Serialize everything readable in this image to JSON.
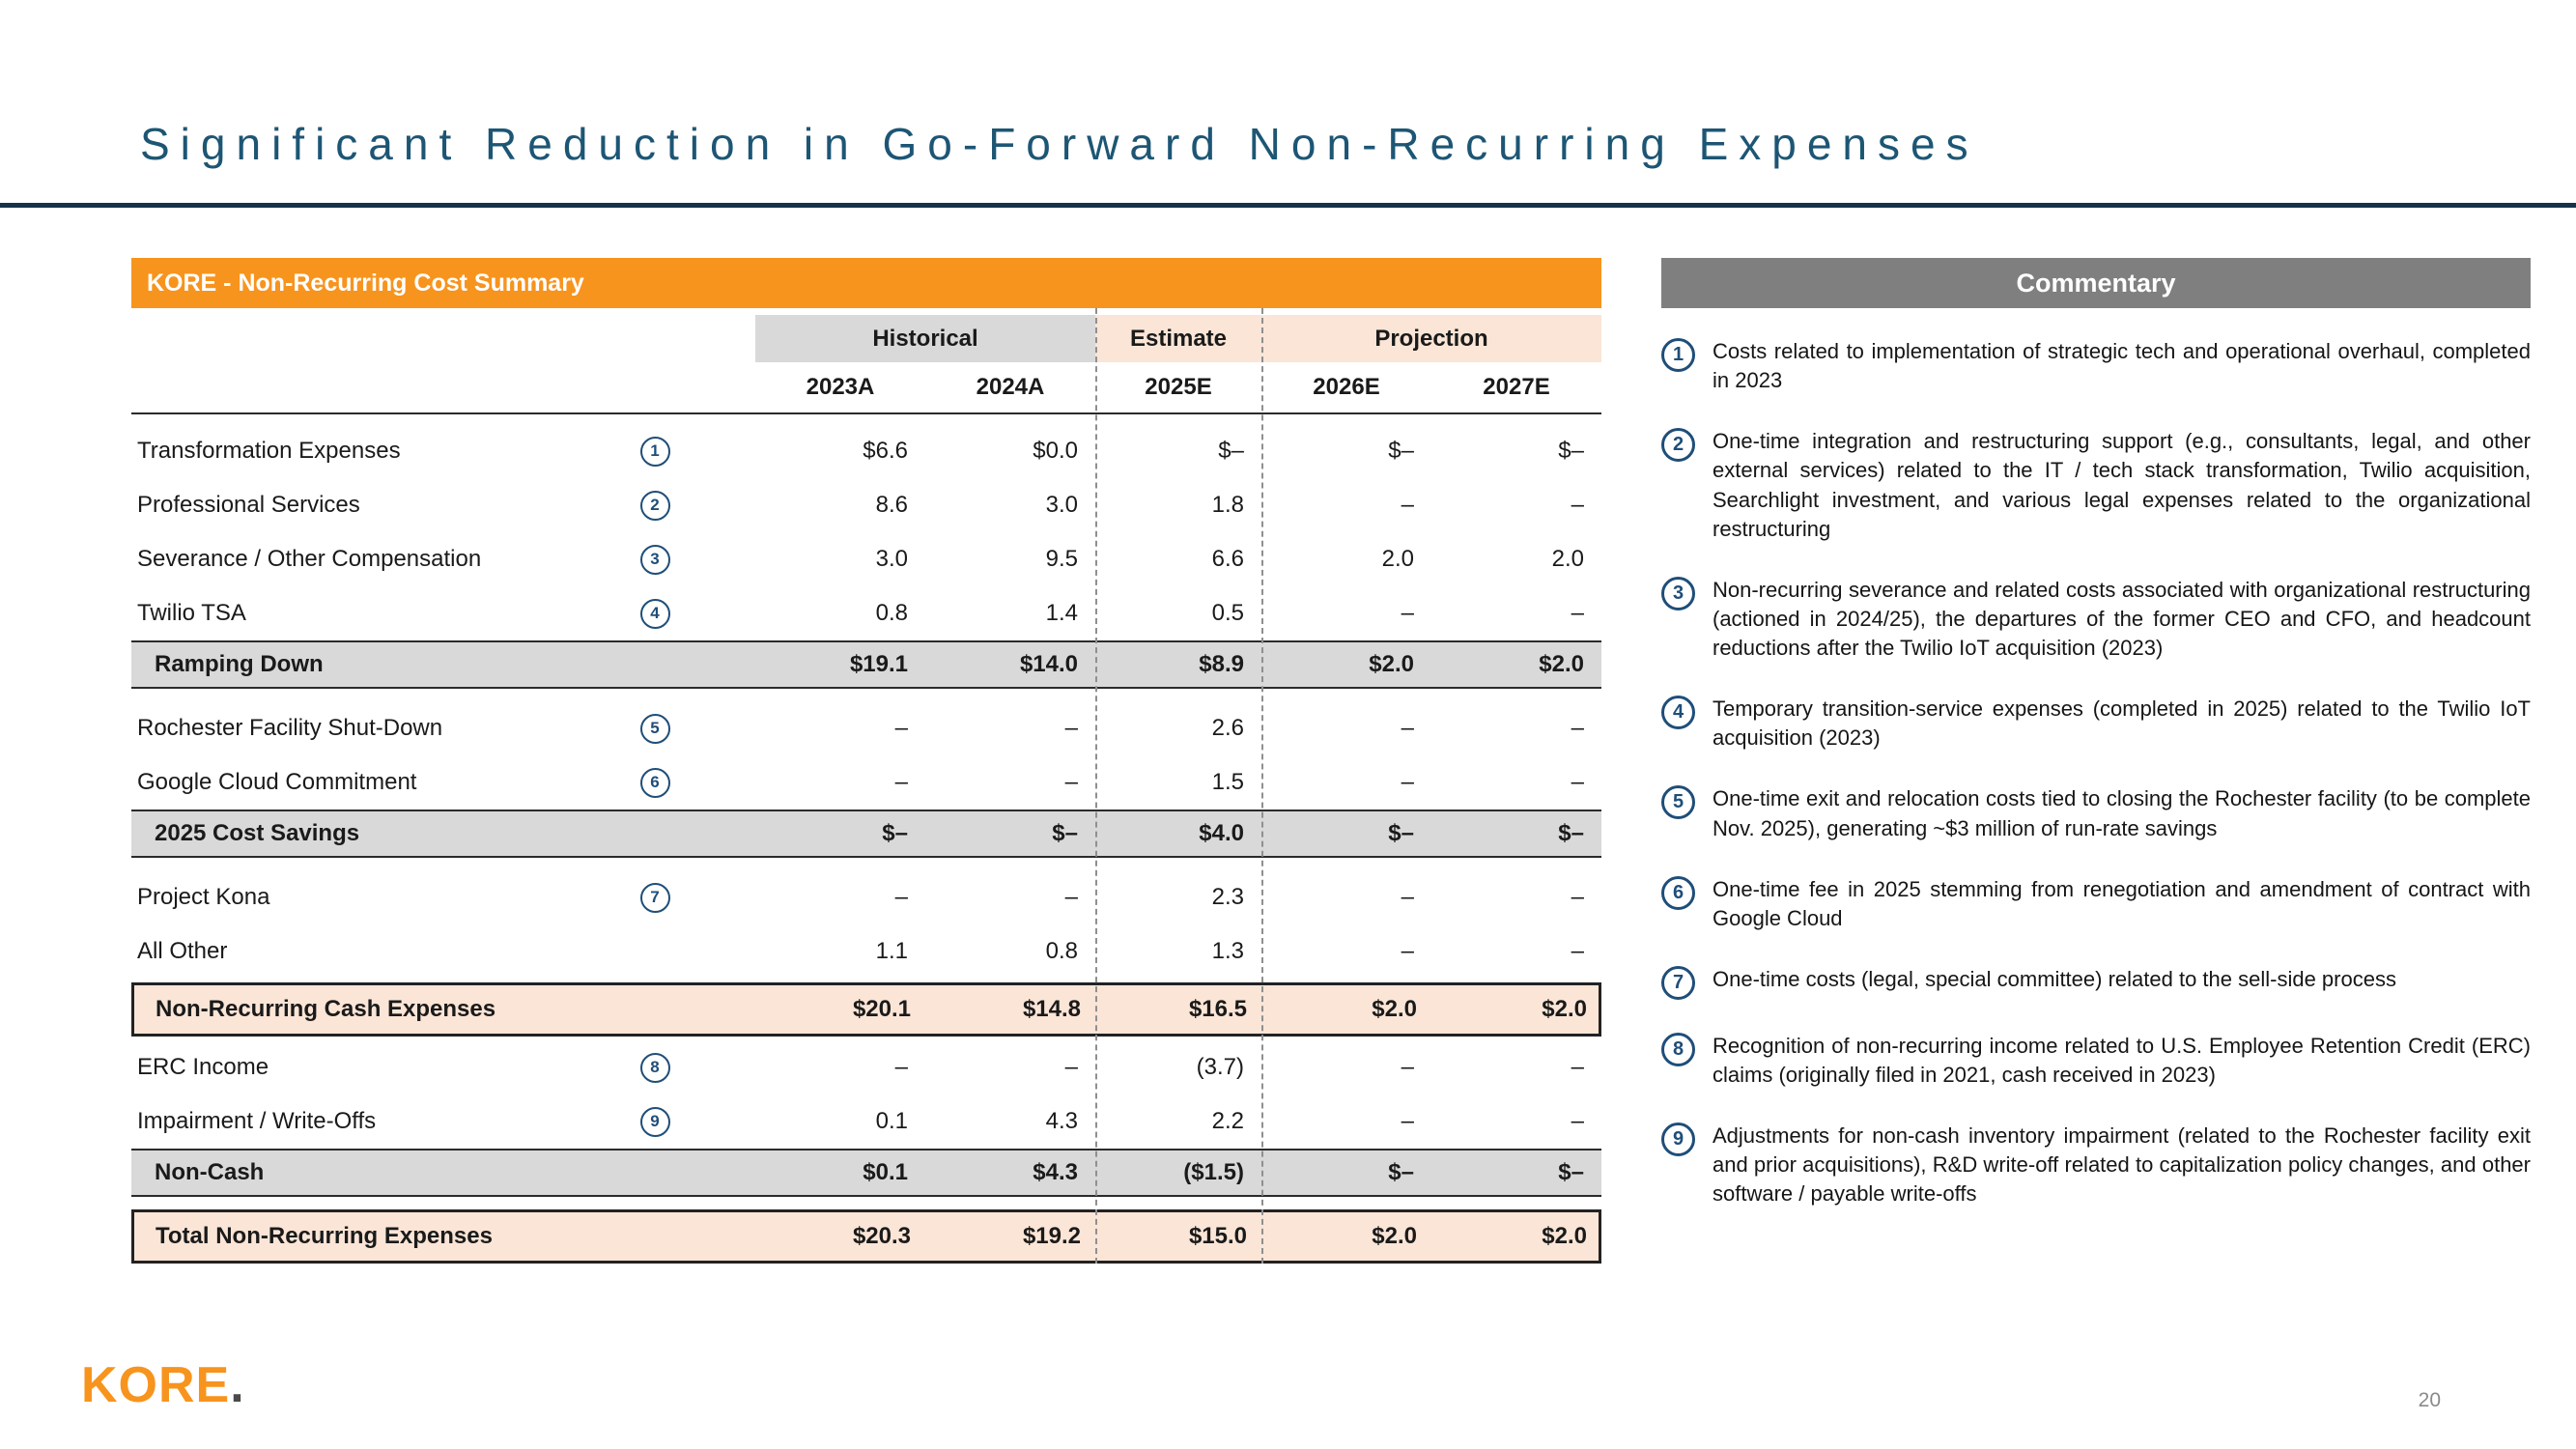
{
  "page": {
    "title": "Significant Reduction in Go-Forward Non-Recurring Expenses",
    "page_number": "20",
    "logo_text": "KORE",
    "logo_dot": "."
  },
  "colors": {
    "accent_orange": "#F7941E",
    "navy_circle": "#1F4E79",
    "title_teal": "#1D5674",
    "subtotal_gray": "#D9D9D9",
    "highlight_peach": "#FBE5D6",
    "commentary_gray": "#7F7F7F"
  },
  "table": {
    "header": "KORE - Non-Recurring Cost Summary",
    "column_groups": [
      {
        "label": "Historical"
      },
      {
        "label": "Estimate"
      },
      {
        "label": "Projection"
      }
    ],
    "years": [
      "2023A",
      "2024A",
      "2025E",
      "2026E",
      "2027E"
    ],
    "rows": [
      {
        "type": "item",
        "label": "Transformation Expenses",
        "note": "1",
        "values": [
          "$6.6",
          "$0.0",
          "$–",
          "$–",
          "$–"
        ]
      },
      {
        "type": "item",
        "label": "Professional Services",
        "note": "2",
        "values": [
          "8.6",
          "3.0",
          "1.8",
          "–",
          "–"
        ]
      },
      {
        "type": "item",
        "label": "Severance / Other Compensation",
        "note": "3",
        "values": [
          "3.0",
          "9.5",
          "6.6",
          "2.0",
          "2.0"
        ]
      },
      {
        "type": "item",
        "label": "Twilio TSA",
        "note": "4",
        "values": [
          "0.8",
          "1.4",
          "0.5",
          "–",
          "–"
        ]
      },
      {
        "type": "subtotal",
        "label": "Ramping Down",
        "values": [
          "$19.1",
          "$14.0",
          "$8.9",
          "$2.0",
          "$2.0"
        ]
      },
      {
        "type": "item",
        "label": "Rochester Facility Shut-Down",
        "note": "5",
        "values": [
          "–",
          "–",
          "2.6",
          "–",
          "–"
        ]
      },
      {
        "type": "item",
        "label": "Google Cloud Commitment",
        "note": "6",
        "values": [
          "–",
          "–",
          "1.5",
          "–",
          "–"
        ]
      },
      {
        "type": "subtotal",
        "label": "2025 Cost Savings",
        "values": [
          "$–",
          "$–",
          "$4.0",
          "$–",
          "$–"
        ]
      },
      {
        "type": "item",
        "label": "Project Kona",
        "note": "7",
        "values": [
          "–",
          "–",
          "2.3",
          "–",
          "–"
        ]
      },
      {
        "type": "item",
        "label": "All Other",
        "values": [
          "1.1",
          "0.8",
          "1.3",
          "–",
          "–"
        ]
      },
      {
        "type": "highlight",
        "label": "Non-Recurring Cash Expenses",
        "values": [
          "$20.1",
          "$14.8",
          "$16.5",
          "$2.0",
          "$2.0"
        ]
      },
      {
        "type": "item",
        "label": "ERC Income",
        "note": "8",
        "values": [
          "–",
          "–",
          "(3.7)",
          "–",
          "–"
        ]
      },
      {
        "type": "item",
        "label": "Impairment / Write-Offs",
        "note": "9",
        "values": [
          "0.1",
          "4.3",
          "2.2",
          "–",
          "–"
        ]
      },
      {
        "type": "subtotal",
        "label": "Non-Cash",
        "values": [
          "$0.1",
          "$4.3",
          "($1.5)",
          "$–",
          "$–"
        ]
      },
      {
        "type": "highlight",
        "label": "Total Non-Recurring Expenses",
        "values": [
          "$20.3",
          "$19.2",
          "$15.0",
          "$2.0",
          "$2.0"
        ]
      }
    ]
  },
  "commentary": {
    "title": "Commentary",
    "items": [
      {
        "number": "1",
        "text": "Costs related to implementation of strategic tech and operational overhaul, completed in 2023"
      },
      {
        "number": "2",
        "text": "One-time integration and restructuring support (e.g., consultants, legal, and other external services) related to the IT / tech stack transformation, Twilio acquisition, Searchlight investment, and various legal expenses related to the organizational restructuring"
      },
      {
        "number": "3",
        "text": "Non-recurring severance and related costs associated with organizational restructuring (actioned in 2024/25), the departures of the former CEO and CFO, and headcount reductions after the Twilio IoT acquisition (2023)"
      },
      {
        "number": "4",
        "text": "Temporary transition-service expenses (completed in 2025) related to the Twilio IoT acquisition (2023)"
      },
      {
        "number": "5",
        "text": "One-time exit and relocation costs tied to closing the Rochester facility (to be complete Nov. 2025), generating ~$3 million of run-rate savings"
      },
      {
        "number": "6",
        "text": "One-time fee in 2025 stemming from renegotiation and amendment of contract with Google Cloud"
      },
      {
        "number": "7",
        "text": "One-time costs (legal, special committee) related to the sell-side process"
      },
      {
        "number": "8",
        "text": "Recognition of non-recurring income related to U.S. Employee Retention Credit (ERC) claims (originally filed in 2021, cash received in 2023)"
      },
      {
        "number": "9",
        "text": "Adjustments for non-cash inventory impairment (related to the Rochester facility exit and prior acquisitions), R&D write-off related to capitalization policy changes, and other software / payable write-offs"
      }
    ]
  }
}
